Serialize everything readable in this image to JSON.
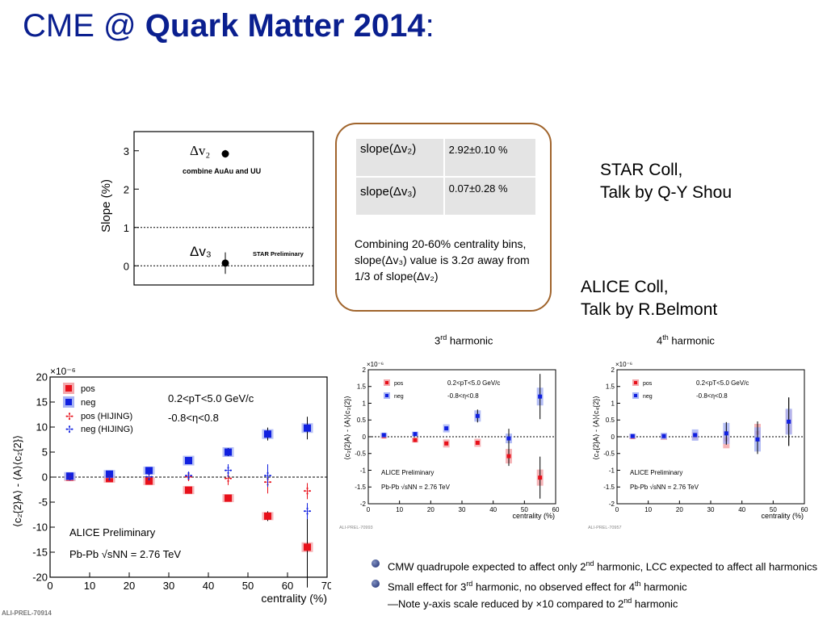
{
  "slide": {
    "title_prefix": "CME @ ",
    "title_bold": "Quark Matter 2014",
    "title_suffix": ":"
  },
  "star_plot": {
    "ylabel": "Slope (%)",
    "yticks": [
      "3",
      "2",
      "1",
      "0"
    ],
    "label_dv2": "Δv₂",
    "label_dv3": "Δv₃",
    "note_combine": "combine AuAu and UU",
    "note_prelim": "STAR Preliminary"
  },
  "slope_table": {
    "rows": [
      {
        "name": "slope(Δv₂)",
        "value": "2.92±0.10 %"
      },
      {
        "name": "slope(Δv₃)",
        "value": "0.07±0.28 %"
      }
    ],
    "note": "Combining 20-60% centrality bins, slope(Δv₃) value is 3.2σ away from 1/3 of slope(Δv₂)"
  },
  "credits": {
    "star_line1": "STAR Coll,",
    "star_line2": "Talk by Q-Y Shou",
    "alice_line1": "ALICE Coll,",
    "alice_line2": "Talk by R.Belmont"
  },
  "harmonic_titles": {
    "third_num": "3",
    "third_sup": "rd",
    "third_word": " harmonic",
    "fourth_num": "4",
    "fourth_sup": "th",
    "fourth_word": " harmonic"
  },
  "plot_texts": {
    "main_exp": "×10⁻⁶",
    "small_exp": "×10⁻⁶",
    "xlabel": "centrality (%)",
    "ylabel_main": "⟨c₂{2}A⟩ - ⟨A⟩⟨c₂{2}⟩",
    "ylabel_3": "⟨c₃{2}A⟩ - ⟨A⟩⟨c₃{2}⟩",
    "ylabel_4": "⟨c₄{2}A⟩ - ⟨A⟩⟨c₄{2}⟩",
    "legend_pos": "pos",
    "legend_neg": "neg",
    "legend_pos_hijing": "pos (HIJING)",
    "legend_neg_hijing": "neg (HIJING)",
    "cut_pt": "0.2<pT<5.0 GeV/c",
    "cut_eta": "-0.8<η<0.8",
    "alice_prelim": "ALICE Preliminary",
    "system": "Pb-Pb √sNN = 2.76 TeV",
    "id_main": "ALI-PREL-70914",
    "id_3": "ALI-PREL-70993",
    "id_4": "ALI-PREL-70957",
    "main_yticks": [
      "20",
      "15",
      "10",
      "5",
      "0",
      "-5",
      "-10",
      "-15",
      "-20"
    ],
    "main_xticks": [
      "0",
      "10",
      "20",
      "30",
      "40",
      "50",
      "60",
      "70"
    ],
    "small_yticks": [
      "2",
      "1.5",
      "1",
      "0.5",
      "0",
      "-0.5",
      "-1",
      "-1.5",
      "-2"
    ],
    "small_xticks": [
      "0",
      "10",
      "20",
      "30",
      "40",
      "50",
      "60"
    ]
  },
  "bullets": {
    "b1_pre": "CMW quadrupole expected to affect only 2",
    "b1_sup": "nd",
    "b1_post": " harmonic, LCC expected to affect all harmonics",
    "b2_pre": "Small effect for 3",
    "b2_sup": "rd",
    "b2_mid": " harmonic, no observed effect for 4",
    "b2_sup2": "th",
    "b2_post": " harmonic",
    "b2_line2_pre": "—Note y-axis scale reduced by ×10 compared to 2",
    "b2_line2_sup": "nd",
    "b2_line2_post": " harmonic"
  },
  "colors": {
    "title": "#0a1f8f",
    "box_border": "#a0642c",
    "pos": "#e8101a",
    "neg": "#1020e0",
    "pos_band": "#f4a8ac",
    "neg_band": "#a8b4f4"
  },
  "chart_data": [
    {
      "type": "scatter",
      "title": "",
      "ylabel": "Slope (%)",
      "ylim": [
        -0.5,
        3.5
      ],
      "series": [
        {
          "name": "Δv₂",
          "values": [
            {
              "y": 2.92,
              "err": 0.1
            }
          ]
        },
        {
          "name": "Δv₃",
          "values": [
            {
              "y": 0.07,
              "err": 0.28
            }
          ]
        }
      ],
      "reference_lines": [
        0,
        1
      ]
    },
    {
      "type": "scatter",
      "xlabel": "centrality (%)",
      "ylabel": "⟨c₂{2}A⟩ - ⟨A⟩⟨c₂{2}⟩",
      "xlim": [
        0,
        70
      ],
      "ylim": [
        -20,
        20
      ],
      "y_scale_factor": "×10⁻⁶",
      "x": [
        5,
        15,
        25,
        35,
        45,
        55,
        65
      ],
      "series": [
        {
          "name": "pos",
          "values": [
            0,
            -0.3,
            -0.8,
            -2.6,
            -4.2,
            -7.8,
            -14
          ]
        },
        {
          "name": "neg",
          "values": [
            0.2,
            0.6,
            1.3,
            3.3,
            5.0,
            8.6,
            9.8
          ]
        },
        {
          "name": "pos (HIJING)",
          "values": [
            0,
            0,
            0,
            0,
            -0.3,
            -1.0,
            -2.8
          ]
        },
        {
          "name": "neg (HIJING)",
          "values": [
            0,
            0,
            0,
            0.3,
            1.3,
            0.3,
            -6.8
          ]
        }
      ]
    },
    {
      "type": "scatter",
      "title": "3rd harmonic",
      "xlabel": "centrality (%)",
      "ylabel": "⟨c₃{2}A⟩ - ⟨A⟩⟨c₃{2}⟩",
      "xlim": [
        0,
        60
      ],
      "ylim": [
        -2,
        2
      ],
      "y_scale_factor": "×10⁻⁶",
      "x": [
        5,
        15,
        25,
        35,
        45,
        55
      ],
      "series": [
        {
          "name": "pos",
          "values": [
            0.02,
            -0.1,
            -0.2,
            -0.18,
            -0.58,
            -1.22
          ]
        },
        {
          "name": "neg",
          "values": [
            0.05,
            0.08,
            0.25,
            0.62,
            -0.05,
            1.2
          ]
        }
      ]
    },
    {
      "type": "scatter",
      "title": "4th harmonic",
      "xlabel": "centrality (%)",
      "ylabel": "⟨c₄{2}A⟩ - ⟨A⟩⟨c₄{2}⟩",
      "xlim": [
        0,
        60
      ],
      "ylim": [
        -2,
        2
      ],
      "y_scale_factor": "×10⁻⁶",
      "x": [
        5,
        15,
        25,
        35,
        45,
        55
      ],
      "series": [
        {
          "name": "pos",
          "values": [
            0,
            0,
            0.02,
            -0.08,
            0.12,
            0.45
          ]
        },
        {
          "name": "neg",
          "values": [
            0.02,
            0.02,
            0.05,
            0.1,
            -0.08,
            0.45
          ]
        }
      ]
    }
  ]
}
